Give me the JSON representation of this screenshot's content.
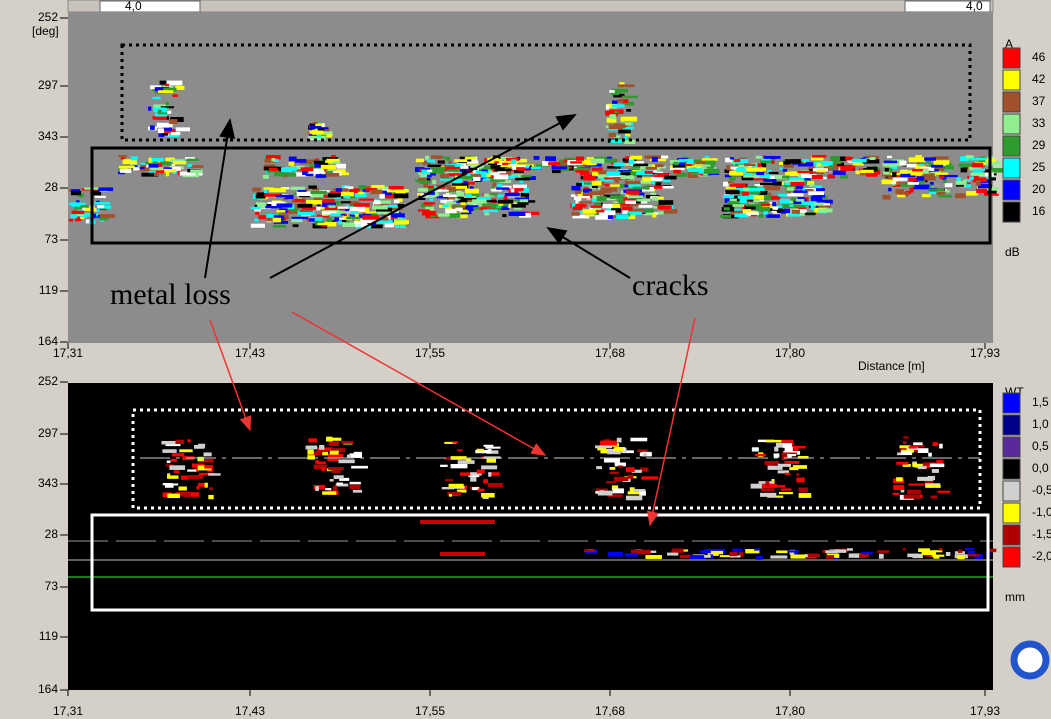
{
  "toolbar": {
    "left_value": "4,0",
    "right_value": "4,0"
  },
  "amplitude_panel": {
    "y_axis_unit": "[deg]",
    "y_ticks": [
      "252",
      "297",
      "343",
      "28",
      "73",
      "119",
      "164"
    ],
    "x_ticks": [
      "17,31",
      "17,43",
      "17,55",
      "17,68",
      "17,80",
      "17,93"
    ],
    "x_axis_label": "Distance [m]",
    "legend": {
      "title": "A",
      "labels": [
        "46",
        "42",
        "37",
        "33",
        "29",
        "25",
        "20",
        "16"
      ],
      "unit": "dB"
    }
  },
  "wall_thickness_panel": {
    "y_ticks": [
      "252",
      "297",
      "343",
      "28",
      "73",
      "119",
      "164"
    ],
    "x_ticks": [
      "17,31",
      "17,43",
      "17,55",
      "17,68",
      "17,80",
      "17,93"
    ],
    "legend": {
      "title": "WT",
      "labels": [
        "1,5",
        "1,0",
        "0,5",
        "0,0",
        "-0,5",
        "-1,0",
        "-1,5",
        "-2,0"
      ],
      "unit": "mm"
    }
  },
  "annotations": {
    "metal_loss": "metal loss",
    "cracks": "cracks"
  }
}
